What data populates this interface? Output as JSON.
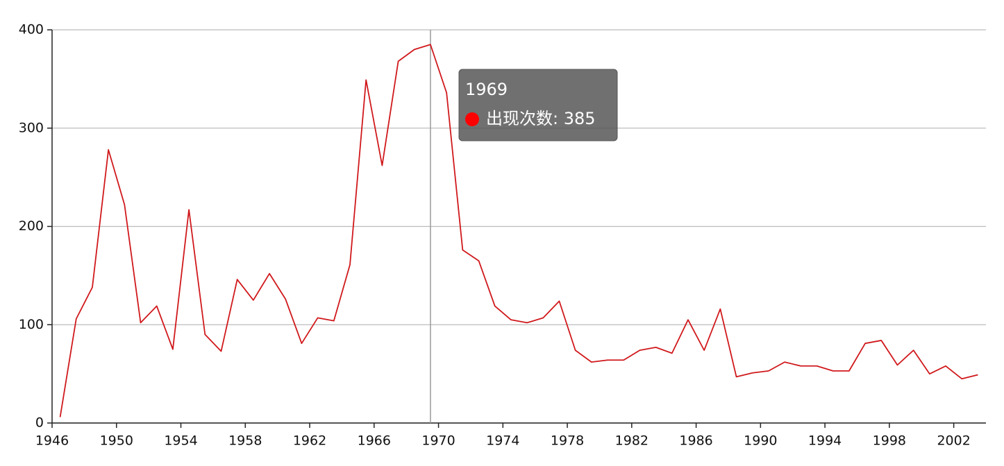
{
  "chart_data": {
    "type": "line",
    "categories": [
      "1946",
      null,
      null,
      null,
      "1950",
      null,
      null,
      null,
      "1954",
      null,
      null,
      null,
      "1958",
      null,
      null,
      null,
      "1962",
      null,
      null,
      null,
      "1966",
      null,
      null,
      null,
      "1970",
      null,
      null,
      null,
      "1974",
      null,
      null,
      null,
      "1978",
      null,
      null,
      null,
      "1982",
      null,
      null,
      null,
      "1986",
      null,
      null,
      null,
      "1990",
      null,
      null,
      null,
      "1994",
      null,
      null,
      null,
      "1998",
      null,
      null,
      null,
      "2002",
      null
    ],
    "series": [
      {
        "name": "出现次数",
        "color": "#d0181b",
        "values": [
          6,
          106,
          138,
          278,
          222,
          102,
          119,
          75,
          217,
          90,
          73,
          146,
          125,
          152,
          126,
          81,
          107,
          104,
          161,
          349,
          262,
          368,
          380,
          385,
          336,
          176,
          165,
          119,
          105,
          102,
          107,
          124,
          74,
          62,
          64,
          64,
          74,
          77,
          71,
          105,
          74,
          116,
          47,
          51,
          53,
          62,
          58,
          58,
          53,
          53,
          81,
          84,
          59,
          74,
          50,
          58,
          45,
          49
        ]
      }
    ],
    "ylim": [
      0,
      400
    ],
    "yticks": [
      0,
      100,
      200,
      300,
      400
    ],
    "grid": true,
    "tooltip": {
      "title": "1969",
      "text": "出现次数: 385",
      "value": 385
    }
  }
}
